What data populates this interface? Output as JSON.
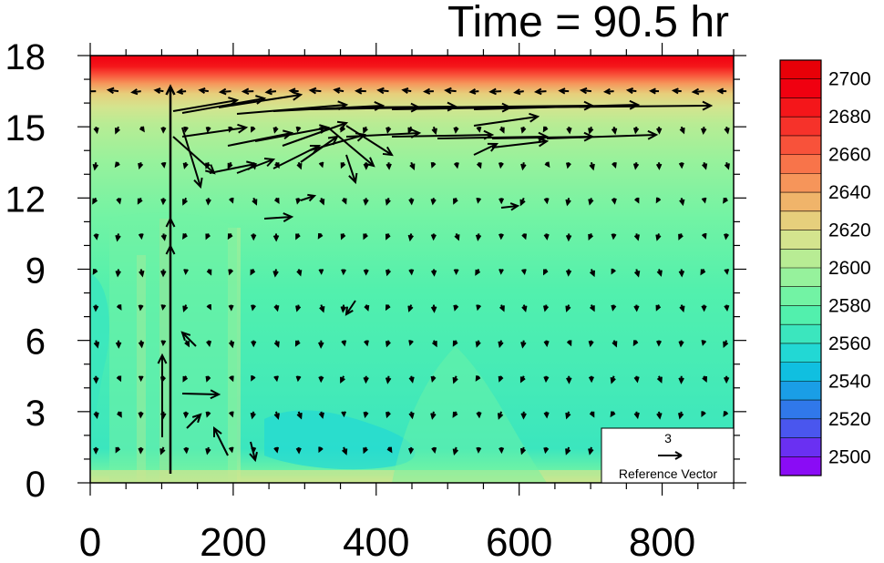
{
  "title": "Time = 90.5 hr",
  "chart_data": {
    "type": "contour-vector",
    "title": "Time = 90.5 hr",
    "xlabel": "",
    "ylabel": "",
    "xlim": [
      0,
      900
    ],
    "ylim": [
      0,
      18
    ],
    "x_ticks": [
      0,
      200,
      400,
      600,
      800
    ],
    "y_ticks": [
      0,
      3,
      6,
      9,
      12,
      15,
      18
    ],
    "colorbar": {
      "min": 2490,
      "max": 2710,
      "step": 10,
      "labels": [
        2500,
        2520,
        2540,
        2560,
        2580,
        2600,
        2620,
        2640,
        2660,
        2680,
        2700
      ],
      "colors": [
        "#8a0cf5",
        "#6a30f2",
        "#4a56ee",
        "#3078ea",
        "#1a9ee6",
        "#10bfe0",
        "#22d8d4",
        "#3be6be",
        "#52f0ad",
        "#72f3a4",
        "#96f29c",
        "#b8ec94",
        "#d4e48e",
        "#e6cf7c",
        "#f0b46a",
        "#f6955a",
        "#f8744a",
        "#f8523a",
        "#f6322a",
        "#f4161a",
        "#f00010",
        "#e80008"
      ]
    },
    "reference_vector": {
      "label": "Reference Vector",
      "magnitude": "3"
    }
  }
}
